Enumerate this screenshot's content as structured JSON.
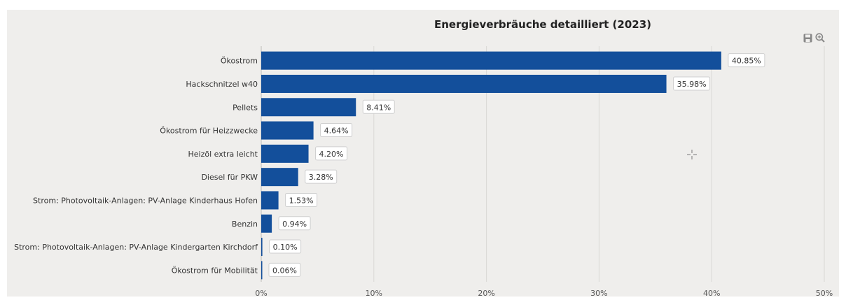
{
  "chart_data": {
    "type": "bar",
    "orientation": "horizontal",
    "title": "Energieverbräuche detailliert (2023)",
    "categories": [
      "Ökostrom",
      "Hackschnitzel w40",
      "Pellets",
      "Ökostrom für Heizzwecke",
      "Heizöl extra leicht",
      "Diesel für PKW",
      "Strom: Photovoltaik-Anlagen: PV-Anlage Kinderhaus Hofen",
      "Benzin",
      "Strom: Photovoltaik-Anlagen: PV-Anlage Kindergarten Kirchdorf",
      "Ökostrom für Mobilität"
    ],
    "values": [
      40.85,
      35.98,
      8.41,
      4.64,
      4.2,
      3.28,
      1.53,
      0.94,
      0.1,
      0.06
    ],
    "data_labels": [
      "40.85%",
      "35.98%",
      "8.41%",
      "4.64%",
      "4.20%",
      "3.28%",
      "1.53%",
      "0.94%",
      "0.10%",
      "0.06%"
    ],
    "xlim": [
      0,
      50
    ],
    "x_ticks": [
      0,
      10,
      20,
      30,
      40,
      50
    ],
    "x_tick_labels": [
      "0%",
      "10%",
      "20%",
      "30%",
      "40%",
      "50%"
    ],
    "xlabel": "",
    "ylabel": "",
    "grid": true,
    "legend": "none",
    "bar_color": "#134f9b"
  },
  "colors": {
    "background": "#efeeec",
    "grid": "#d9d8d5",
    "bar": "#134f9b",
    "text": "#333333",
    "icon": "#888888"
  },
  "toolbar": {
    "icons": [
      "save-icon",
      "zoom-in-icon"
    ]
  }
}
